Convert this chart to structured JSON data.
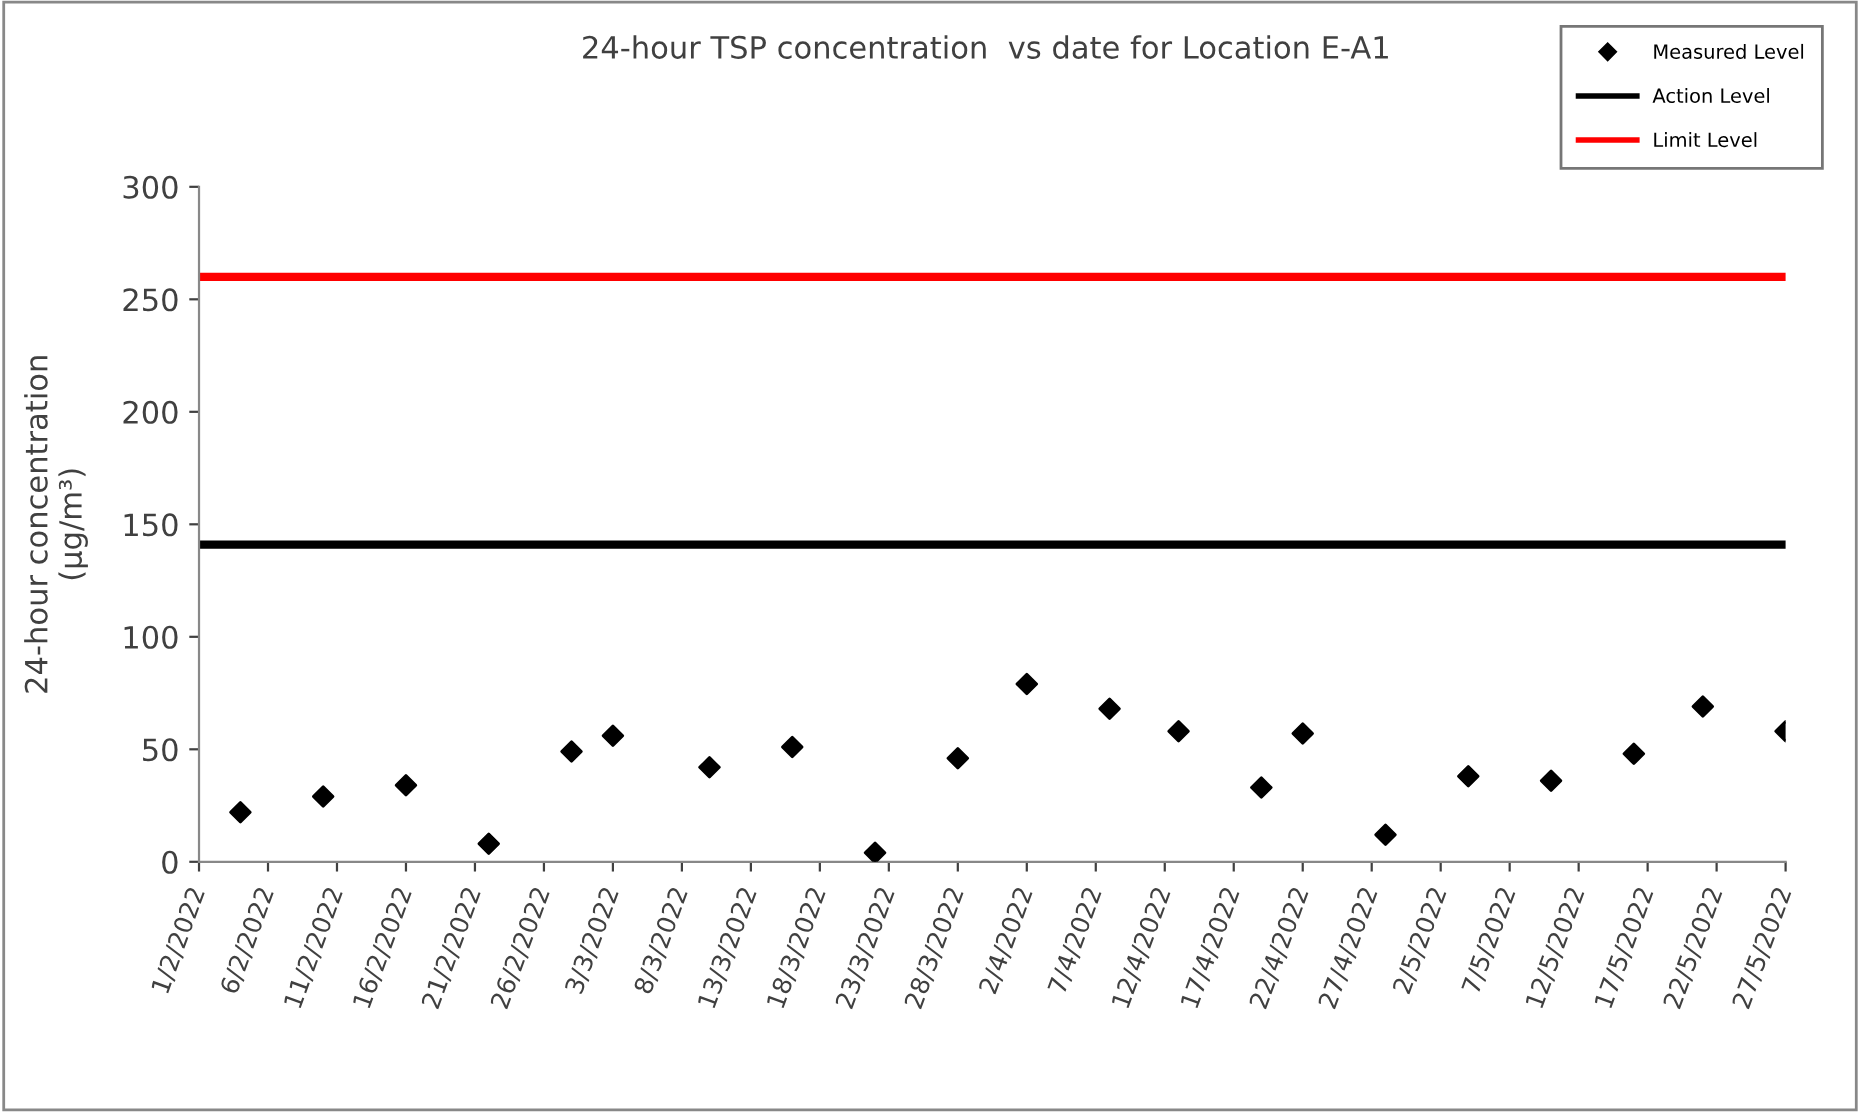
{
  "chart_data": {
    "type": "scatter",
    "title": "24-hour TSP concentration  vs date for Location E-A1",
    "ylabel": "24-hour concentration\n(µg/m³)",
    "x": [
      "2022-02-04",
      "2022-02-10",
      "2022-02-16",
      "2022-02-22",
      "2022-02-28",
      "2022-03-03",
      "2022-03-10",
      "2022-03-16",
      "2022-03-22",
      "2022-03-28",
      "2022-04-02",
      "2022-04-08",
      "2022-04-13",
      "2022-04-19",
      "2022-04-22",
      "2022-04-28",
      "2022-05-04",
      "2022-05-10",
      "2022-05-16",
      "2022-05-21",
      "2022-05-27"
    ],
    "series": [
      {
        "name": "Measured Level",
        "color": "#000000",
        "values": [
          22,
          29,
          34,
          8,
          49,
          56,
          42,
          51,
          4,
          46,
          79,
          68,
          58,
          33,
          57,
          12,
          38,
          36,
          48,
          69,
          58
        ]
      }
    ],
    "marker": "diamond",
    "ref_lines": [
      {
        "axis": "y",
        "value": 141,
        "label": "Action Level",
        "color": "#000000"
      },
      {
        "axis": "y",
        "value": 260,
        "label": "Limit Level",
        "color": "#ff0000"
      }
    ],
    "xlim": [
      "2022-02-01",
      "2022-05-27"
    ],
    "xticks": [
      {
        "value": "2022-02-01",
        "label": "1/2/2022"
      },
      {
        "value": "2022-02-06",
        "label": "6/2/2022"
      },
      {
        "value": "2022-02-11",
        "label": "11/2/2022"
      },
      {
        "value": "2022-02-16",
        "label": "16/2/2022"
      },
      {
        "value": "2022-02-21",
        "label": "21/2/2022"
      },
      {
        "value": "2022-02-26",
        "label": "26/2/2022"
      },
      {
        "value": "2022-03-03",
        "label": "3/3/2022"
      },
      {
        "value": "2022-03-08",
        "label": "8/3/2022"
      },
      {
        "value": "2022-03-13",
        "label": "13/3/2022"
      },
      {
        "value": "2022-03-18",
        "label": "18/3/2022"
      },
      {
        "value": "2022-03-23",
        "label": "23/3/2022"
      },
      {
        "value": "2022-03-28",
        "label": "28/3/2022"
      },
      {
        "value": "2022-04-02",
        "label": "2/4/2022"
      },
      {
        "value": "2022-04-07",
        "label": "7/4/2022"
      },
      {
        "value": "2022-04-12",
        "label": "12/4/2022"
      },
      {
        "value": "2022-04-17",
        "label": "17/4/2022"
      },
      {
        "value": "2022-04-22",
        "label": "22/4/2022"
      },
      {
        "value": "2022-04-27",
        "label": "27/4/2022"
      },
      {
        "value": "2022-05-02",
        "label": "2/5/2022"
      },
      {
        "value": "2022-05-07",
        "label": "7/5/2022"
      },
      {
        "value": "2022-05-12",
        "label": "12/5/2022"
      },
      {
        "value": "2022-05-17",
        "label": "17/5/2022"
      },
      {
        "value": "2022-05-22",
        "label": "22/5/2022"
      },
      {
        "value": "2022-05-27",
        "label": "27/5/2022"
      }
    ],
    "ylim": [
      0,
      300
    ],
    "yticks": [
      0,
      50,
      100,
      150,
      200,
      250,
      300
    ],
    "grid": false,
    "legend": "top right"
  }
}
